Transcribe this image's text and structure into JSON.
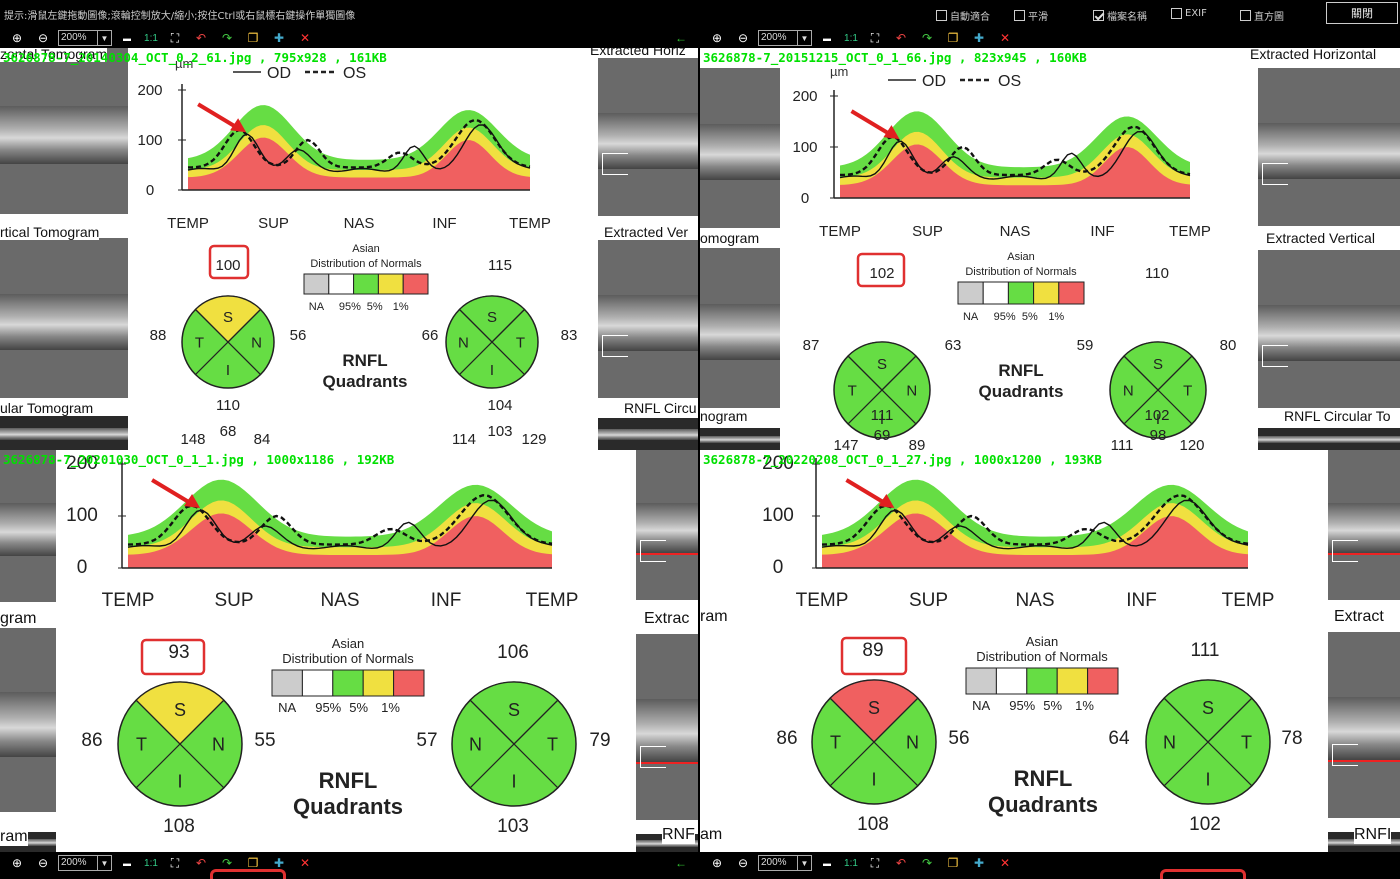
{
  "hint": "提示:滑鼠左鍵拖動圖像;滾輪控制放大/縮小;按住Ctrl或右鼠標右鍵操作單獨圖像",
  "options": [
    {
      "label": "自動適合",
      "checked": false
    },
    {
      "label": "平滑",
      "checked": false
    },
    {
      "label": "檔案名稱",
      "checked": true
    },
    {
      "label": "EXIF",
      "checked": false
    },
    {
      "label": "直方圖",
      "checked": false
    }
  ],
  "close_label": "關閉",
  "toolbar": {
    "zoom": "200%",
    "ratio": "1:1"
  },
  "colors": {
    "fname": "#00e000",
    "normal_green": "#66dd44",
    "yellow": "#f0e040",
    "red": "#f06060",
    "highlight_box": "#e03030",
    "arrow": "#e02020"
  },
  "legend": {
    "title1": "Asian",
    "title2": "Distribution of Normals",
    "na": "NA",
    "p95": "95%",
    "p5": "5%",
    "p1": "1%"
  },
  "axis": {
    "unit": "µm",
    "od": "OD",
    "os": "OS",
    "y": [
      "200",
      "100",
      "0"
    ],
    "x": [
      "TEMP",
      "SUP",
      "NAS",
      "INF",
      "TEMP"
    ]
  },
  "rnfl_title": [
    "RNFL",
    "Quadrants"
  ],
  "panes": [
    {
      "file": "3626878-7_20140304_OCT_0_2_61.jpg  ,  795x928  ,  161KB",
      "labels": {
        "l1": "zontal Tomogram",
        "l2": "rtical Tomogram",
        "l3": "ular Tomogram",
        "r1": "Extracted Horiz",
        "r2": "Extracted Ver",
        "r3": "RNFL Circu"
      },
      "od": {
        "S": "100",
        "T": "88",
        "N": "56",
        "I": "110",
        "S_color": "yellow"
      },
      "os": {
        "S": "115",
        "T": "83",
        "N": "66",
        "I": "104"
      },
      "extra": [
        "148",
        "68",
        "84",
        "114",
        "103",
        "129"
      ]
    },
    {
      "file": "3626878-7_20151215_OCT_0_1_66.jpg  ,  823x945  ,  160KB",
      "labels": {
        "l1": "",
        "l2": "omogram",
        "l3": "nogram",
        "r1": "Extracted Horizontal",
        "r2": "Extracted Vertical",
        "r3": "RNFL Circular To"
      },
      "od": {
        "S": "102",
        "T": "87",
        "N": "63",
        "I": "111",
        "S_color": "green"
      },
      "os": {
        "S": "110",
        "T": "80",
        "N": "59",
        "I": "102"
      },
      "extra": [
        "147",
        "69",
        "89",
        "111",
        "98",
        "120"
      ]
    },
    {
      "file": "3626878-7_20201030_OCT_0_1_1.jpg  ,  1000x1186  ,  192KB",
      "labels": {
        "l1": "",
        "l2": "gram",
        "l3": "ram",
        "r1": "",
        "r2": "Extrac",
        "r3": "RNF"
      },
      "od": {
        "S": "93",
        "T": "86",
        "N": "55",
        "I": "108",
        "S_color": "yellow"
      },
      "os": {
        "S": "106",
        "T": "79",
        "N": "57",
        "I": "103"
      },
      "extra": []
    },
    {
      "file": "3626878-7_20220208_OCT_0_1_27.jpg  ,  1000x1200  ,  193KB",
      "labels": {
        "l1": "",
        "l2": "ram",
        "l3": "am",
        "r1": "",
        "r2": "Extract",
        "r3": "RNFI"
      },
      "od": {
        "S": "89",
        "T": "86",
        "N": "56",
        "I": "108",
        "S_color": "red"
      },
      "os": {
        "S": "111",
        "T": "78",
        "N": "64",
        "I": "102"
      },
      "extra": []
    }
  ]
}
